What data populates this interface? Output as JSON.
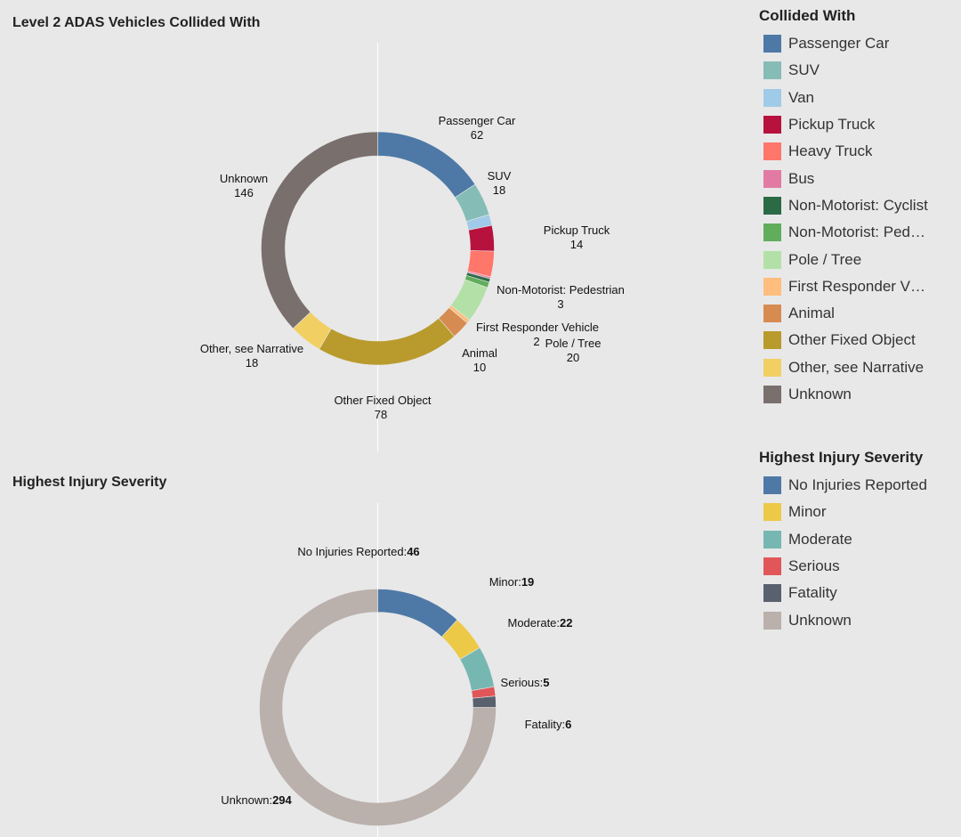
{
  "chart_data": [
    {
      "type": "donut",
      "title": "Level 2 ADAS Vehicles Collided With",
      "legend_title": "Collided With",
      "legend_position": "right",
      "categories": [
        "Passenger Car",
        "SUV",
        "Van",
        "Pickup Truck",
        "Heavy Truck",
        "Bus",
        "Non-Motorist: Cyclist",
        "Non-Motorist: Pedestrian",
        "Pole / Tree",
        "First Responder Vehicle",
        "Animal",
        "Other Fixed Object",
        "Other, see Narrative",
        "Unknown"
      ],
      "legend_labels": [
        "Passenger Car",
        "SUV",
        "Van",
        "Pickup Truck",
        "Heavy Truck",
        "Bus",
        "Non-Motorist: Cyclist",
        "Non-Motorist: Ped…",
        "Pole / Tree",
        "First Responder V…",
        "Animal",
        "Other Fixed Object",
        "Other, see Narrative",
        "Unknown"
      ],
      "values": [
        62,
        18,
        6,
        14,
        14,
        1,
        2,
        3,
        20,
        2,
        10,
        78,
        18,
        146
      ],
      "colors": [
        "#4e79a7",
        "#86bcb6",
        "#a0cbe8",
        "#b6123d",
        "#ff766a",
        "#e17ba4",
        "#2a6b45",
        "#60ad5b",
        "#b3e0a6",
        "#ffbe7d",
        "#d68b51",
        "#b99a2c",
        "#f1cf63",
        "#79706e"
      ],
      "slice_labels": [
        {
          "name": "Passenger Car",
          "value": "62"
        },
        {
          "name": "SUV",
          "value": "18"
        },
        {
          "name": "Pickup Truck",
          "value": "14"
        },
        {
          "name": "Non-Motorist: Pedestrian",
          "value": "3"
        },
        {
          "name": "First Responder Vehicle",
          "value": "2"
        },
        {
          "name": "Pole / Tree",
          "value": "20"
        },
        {
          "name": "Animal",
          "value": "10"
        },
        {
          "name": "Other Fixed Object",
          "value": "78"
        },
        {
          "name": "Other, see Narrative",
          "value": "18"
        },
        {
          "name": "Unknown",
          "value": "146"
        }
      ]
    },
    {
      "type": "donut",
      "title": "Highest Injury Severity",
      "legend_title": "Highest  Injury Severity",
      "legend_position": "right",
      "categories": [
        "No Injuries Reported",
        "Minor",
        "Moderate",
        "Serious",
        "Fatality",
        "Unknown"
      ],
      "values": [
        46,
        19,
        22,
        5,
        6,
        294
      ],
      "colors": [
        "#4e79a7",
        "#edc948",
        "#76b7b2",
        "#e15759",
        "#59606e",
        "#bab0ac"
      ],
      "slice_labels": [
        {
          "name": "No Injuries Reported",
          "value": "46"
        },
        {
          "name": "Minor",
          "value": "19"
        },
        {
          "name": "Moderate",
          "value": "22"
        },
        {
          "name": "Serious",
          "value": "5"
        },
        {
          "name": "Fatality",
          "value": "6"
        },
        {
          "name": "Unknown",
          "value": "294"
        }
      ]
    }
  ]
}
